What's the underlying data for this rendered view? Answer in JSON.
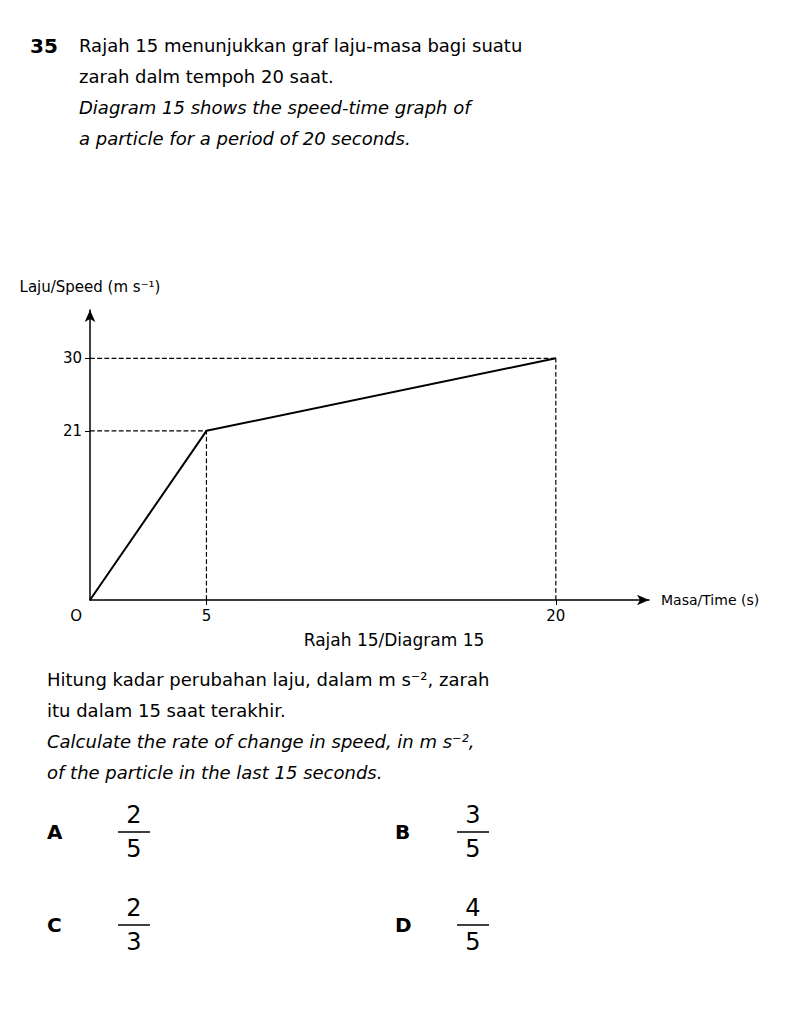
{
  "chart_data": {
    "type": "line",
    "question_number": "35",
    "title": [
      "Rajah 15 menunjukkan graf laju-masa bagi suatu",
      "zarah dalm tempoh 20 saat."
    ],
    "subtitle": [
      "Diagram 15 shows the speed-time graph of",
      "a particle for a period of 20 seconds."
    ],
    "y_label": "Laju/Speed (m s⁻¹)",
    "x_label": "Masa/Time (s)",
    "origin_label": "O",
    "caption": "Rajah 15/Diagram 15",
    "question": [
      "Hitung kadar perubahan laju, dalam m s⁻², zarah",
      "itu dalam 15 saat terakhir.",
      "Calculate the rate of change in speed, in m s⁻²,",
      "of the particle in the last 15 seconds."
    ],
    "options": [
      {
        "letter": "A",
        "numerator": 2,
        "denominator": 5
      },
      {
        "letter": "B",
        "numerator": 3,
        "denominator": 5
      },
      {
        "letter": "C",
        "numerator": 2,
        "denominator": 3
      },
      {
        "letter": "D",
        "numerator": 4,
        "denominator": 5
      }
    ],
    "x": [
      0,
      5,
      20
    ],
    "values": [
      0,
      21,
      30
    ],
    "xlim": [
      0,
      24
    ],
    "ylim": [
      0,
      36
    ],
    "xticks": [
      5,
      20
    ],
    "yticks": [
      21,
      30
    ],
    "color": "#000000",
    "grid": false
  }
}
